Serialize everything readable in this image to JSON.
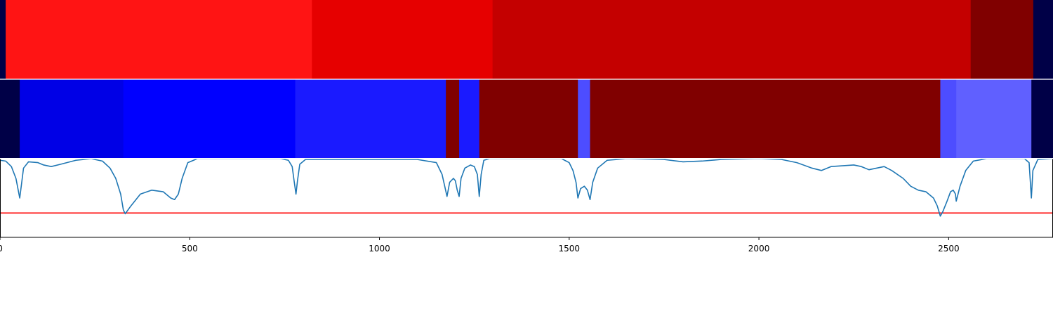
{
  "chart_data": {
    "type": "heatmap",
    "title": "",
    "xlabel": "",
    "ylabel": "",
    "xlim": [
      0,
      2775
    ],
    "grid": false,
    "x_ticks": [
      {
        "value": 0,
        "label": "0"
      },
      {
        "value": 500,
        "label": "500"
      },
      {
        "value": 1000,
        "label": "1000"
      },
      {
        "value": 1500,
        "label": "1500"
      },
      {
        "value": 2000,
        "label": "2000"
      },
      {
        "value": 2500,
        "label": "2500"
      }
    ],
    "tracks": [
      {
        "segments": [
          {
            "start": 0,
            "end": 15,
            "color": "#000047"
          },
          {
            "start": 15,
            "end": 822,
            "color": "#ff1414"
          },
          {
            "start": 822,
            "end": 1298,
            "color": "#e60000"
          },
          {
            "start": 1298,
            "end": 2558,
            "color": "#c40000"
          },
          {
            "start": 2558,
            "end": 2723,
            "color": "#800000"
          },
          {
            "start": 2723,
            "end": 2775,
            "color": "#000047"
          }
        ]
      },
      {
        "segments": [
          {
            "start": 0,
            "end": 52,
            "color": "#000047"
          },
          {
            "start": 52,
            "end": 325,
            "color": "#0000e6"
          },
          {
            "start": 325,
            "end": 778,
            "color": "#0000ff"
          },
          {
            "start": 778,
            "end": 1175,
            "color": "#1a1aff"
          },
          {
            "start": 1175,
            "end": 1210,
            "color": "#800000"
          },
          {
            "start": 1210,
            "end": 1263,
            "color": "#1a1aff"
          },
          {
            "start": 1263,
            "end": 1523,
            "color": "#800000"
          },
          {
            "start": 1523,
            "end": 1555,
            "color": "#4d4dff"
          },
          {
            "start": 1555,
            "end": 2478,
            "color": "#800000"
          },
          {
            "start": 2478,
            "end": 2520,
            "color": "#4d4dff"
          },
          {
            "start": 2520,
            "end": 2718,
            "color": "#6060ff"
          },
          {
            "start": 2718,
            "end": 2775,
            "color": "#000047"
          }
        ]
      }
    ],
    "line_plot": {
      "ylim": [
        0,
        1
      ],
      "line_color": "#1f77b4",
      "threshold": {
        "value": 0.31,
        "color": "#ff0000"
      },
      "points": [
        [
          0,
          0.98
        ],
        [
          15,
          0.97
        ],
        [
          30,
          0.9
        ],
        [
          42,
          0.75
        ],
        [
          48,
          0.6
        ],
        [
          52,
          0.5
        ],
        [
          56,
          0.65
        ],
        [
          62,
          0.88
        ],
        [
          75,
          0.96
        ],
        [
          100,
          0.95
        ],
        [
          115,
          0.92
        ],
        [
          135,
          0.9
        ],
        [
          160,
          0.93
        ],
        [
          200,
          0.98
        ],
        [
          240,
          1.0
        ],
        [
          270,
          0.97
        ],
        [
          290,
          0.88
        ],
        [
          305,
          0.75
        ],
        [
          318,
          0.55
        ],
        [
          325,
          0.35
        ],
        [
          330,
          0.3
        ],
        [
          345,
          0.4
        ],
        [
          370,
          0.55
        ],
        [
          400,
          0.6
        ],
        [
          430,
          0.58
        ],
        [
          450,
          0.5
        ],
        [
          460,
          0.48
        ],
        [
          470,
          0.55
        ],
        [
          480,
          0.75
        ],
        [
          495,
          0.95
        ],
        [
          520,
          1.0
        ],
        [
          740,
          1.0
        ],
        [
          760,
          0.98
        ],
        [
          770,
          0.9
        ],
        [
          775,
          0.72
        ],
        [
          780,
          0.55
        ],
        [
          784,
          0.72
        ],
        [
          790,
          0.93
        ],
        [
          805,
          0.99
        ],
        [
          1100,
          0.99
        ],
        [
          1150,
          0.95
        ],
        [
          1165,
          0.8
        ],
        [
          1172,
          0.65
        ],
        [
          1178,
          0.52
        ],
        [
          1185,
          0.7
        ],
        [
          1195,
          0.75
        ],
        [
          1200,
          0.72
        ],
        [
          1205,
          0.6
        ],
        [
          1210,
          0.52
        ],
        [
          1215,
          0.75
        ],
        [
          1225,
          0.88
        ],
        [
          1240,
          0.92
        ],
        [
          1250,
          0.9
        ],
        [
          1258,
          0.8
        ],
        [
          1263,
          0.52
        ],
        [
          1268,
          0.8
        ],
        [
          1275,
          0.98
        ],
        [
          1290,
          1.0
        ],
        [
          1480,
          1.0
        ],
        [
          1500,
          0.95
        ],
        [
          1510,
          0.85
        ],
        [
          1518,
          0.7
        ],
        [
          1523,
          0.5
        ],
        [
          1530,
          0.62
        ],
        [
          1540,
          0.65
        ],
        [
          1548,
          0.6
        ],
        [
          1555,
          0.48
        ],
        [
          1562,
          0.7
        ],
        [
          1575,
          0.88
        ],
        [
          1600,
          0.98
        ],
        [
          1650,
          1.0
        ],
        [
          1750,
          0.99
        ],
        [
          1800,
          0.96
        ],
        [
          1850,
          0.97
        ],
        [
          1900,
          0.99
        ],
        [
          2000,
          1.0
        ],
        [
          2060,
          0.99
        ],
        [
          2100,
          0.95
        ],
        [
          2140,
          0.88
        ],
        [
          2165,
          0.85
        ],
        [
          2190,
          0.9
        ],
        [
          2250,
          0.92
        ],
        [
          2270,
          0.9
        ],
        [
          2290,
          0.86
        ],
        [
          2310,
          0.88
        ],
        [
          2330,
          0.9
        ],
        [
          2350,
          0.85
        ],
        [
          2380,
          0.75
        ],
        [
          2400,
          0.65
        ],
        [
          2420,
          0.6
        ],
        [
          2440,
          0.58
        ],
        [
          2460,
          0.5
        ],
        [
          2470,
          0.4
        ],
        [
          2478,
          0.27
        ],
        [
          2484,
          0.32
        ],
        [
          2495,
          0.45
        ],
        [
          2505,
          0.58
        ],
        [
          2512,
          0.6
        ],
        [
          2518,
          0.55
        ],
        [
          2520,
          0.46
        ],
        [
          2530,
          0.65
        ],
        [
          2545,
          0.85
        ],
        [
          2565,
          0.97
        ],
        [
          2600,
          1.0
        ],
        [
          2700,
          1.0
        ],
        [
          2712,
          0.95
        ],
        [
          2718,
          0.5
        ],
        [
          2722,
          0.85
        ],
        [
          2735,
          0.99
        ],
        [
          2775,
          1.0
        ]
      ]
    }
  }
}
